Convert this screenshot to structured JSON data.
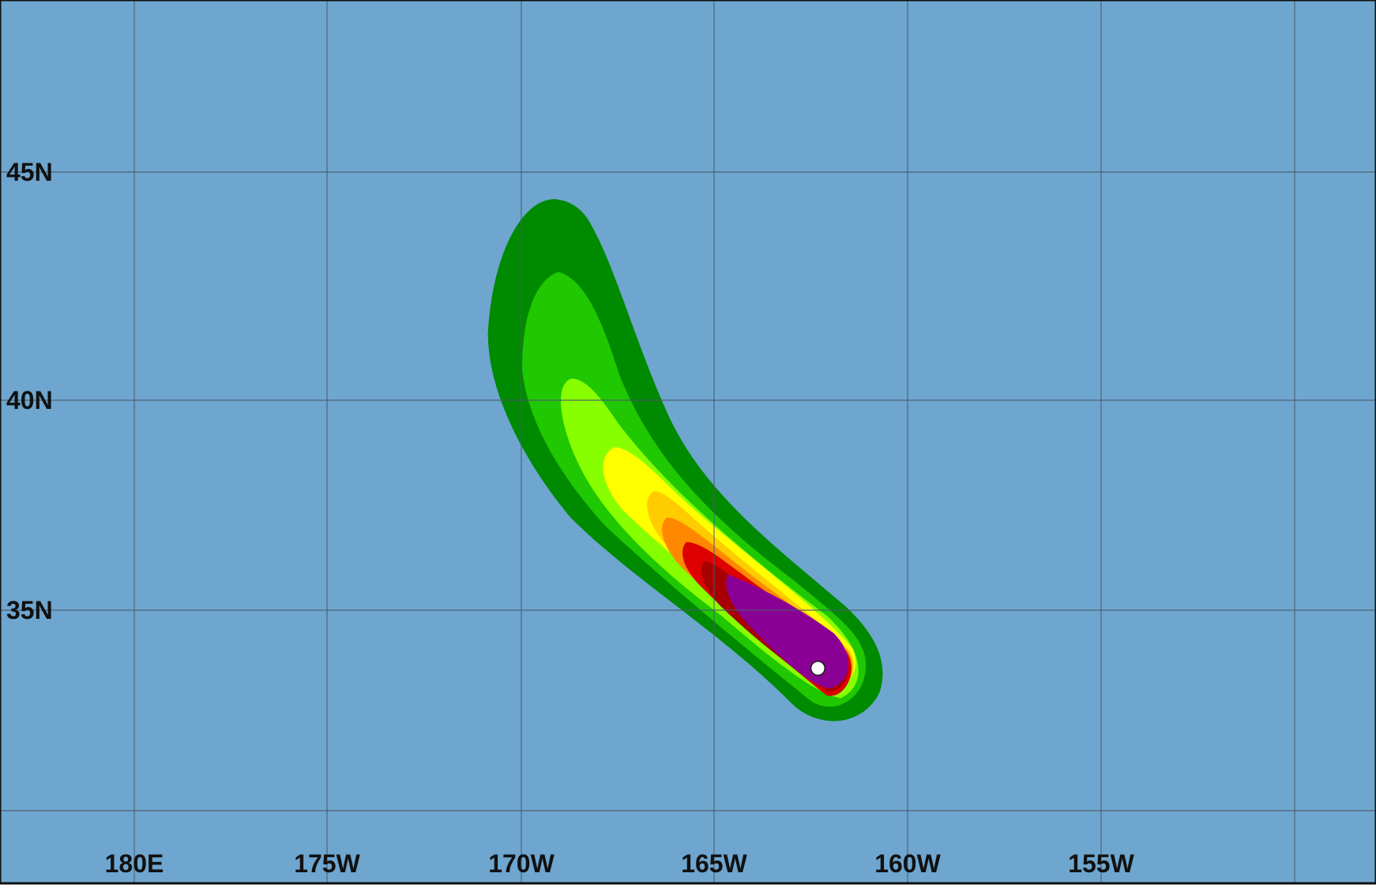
{
  "map": {
    "lat_labels": [
      "45N",
      "40N",
      "35N"
    ],
    "lon_labels": [
      "180E",
      "175W",
      "170W",
      "165W",
      "160W",
      "155W"
    ]
  }
}
